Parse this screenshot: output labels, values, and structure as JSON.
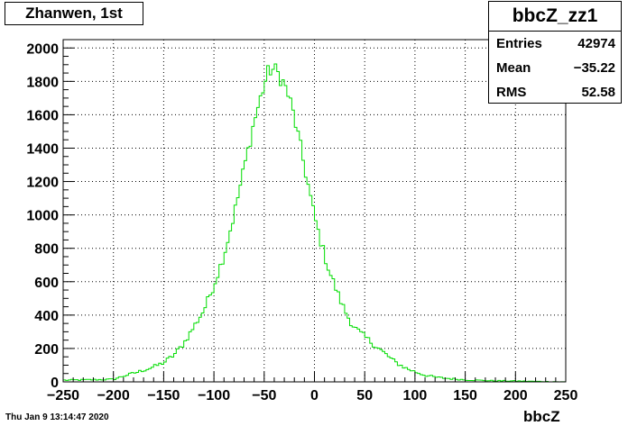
{
  "title": "Zhanwen, 1st",
  "stats": {
    "name": "bbcZ_zz1",
    "rows": [
      {
        "key": "Entries",
        "value": "42974"
      },
      {
        "key": "Mean",
        "value": "−35.22"
      },
      {
        "key": "RMS",
        "value": "52.58"
      }
    ]
  },
  "footer_date": "Thu Jan  9 13:14:47 2020",
  "colors": {
    "histogram": "#00dd00",
    "frame": "#000000",
    "grid": "#000000"
  },
  "chart_data": {
    "type": "histogram",
    "title": "Zhanwen, 1st",
    "xlabel": "bbcZ",
    "ylabel": "",
    "xlim": [
      -250,
      250
    ],
    "ylim": [
      0,
      2050
    ],
    "grid": true,
    "xticks": [
      -250,
      -200,
      -150,
      -100,
      -50,
      0,
      50,
      100,
      150,
      200,
      250
    ],
    "yticks": [
      0,
      200,
      400,
      600,
      800,
      1000,
      1200,
      1400,
      1600,
      1800,
      2000
    ],
    "bin_width": 2.5,
    "curve_points": [
      [
        -250,
        10
      ],
      [
        -200,
        15
      ],
      [
        -190,
        35
      ],
      [
        -175,
        60
      ],
      [
        -160,
        90
      ],
      [
        -150,
        115
      ],
      [
        -140,
        160
      ],
      [
        -130,
        230
      ],
      [
        -120,
        330
      ],
      [
        -110,
        430
      ],
      [
        -100,
        580
      ],
      [
        -90,
        760
      ],
      [
        -80,
        1000
      ],
      [
        -70,
        1280
      ],
      [
        -60,
        1560
      ],
      [
        -50,
        1780
      ],
      [
        -45,
        1870
      ],
      [
        -40,
        1870
      ],
      [
        -35,
        1840
      ],
      [
        -30,
        1780
      ],
      [
        -25,
        1700
      ],
      [
        -20,
        1580
      ],
      [
        -15,
        1440
      ],
      [
        -10,
        1290
      ],
      [
        -5,
        1140
      ],
      [
        0,
        990
      ],
      [
        5,
        870
      ],
      [
        10,
        760
      ],
      [
        15,
        660
      ],
      [
        20,
        580
      ],
      [
        25,
        500
      ],
      [
        30,
        430
      ],
      [
        35,
        370
      ],
      [
        40,
        325
      ],
      [
        45,
        295
      ],
      [
        50,
        270
      ],
      [
        60,
        220
      ],
      [
        70,
        170
      ],
      [
        80,
        120
      ],
      [
        90,
        85
      ],
      [
        100,
        60
      ],
      [
        110,
        40
      ],
      [
        120,
        28
      ],
      [
        130,
        22
      ],
      [
        150,
        12
      ],
      [
        175,
        7
      ],
      [
        200,
        5
      ],
      [
        250,
        0
      ]
    ]
  }
}
